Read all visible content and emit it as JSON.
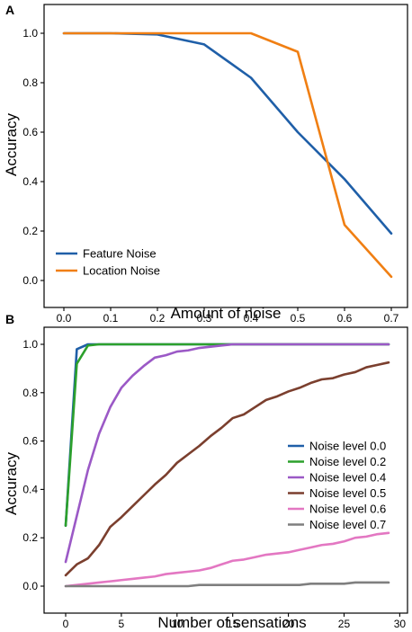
{
  "chart_data": [
    {
      "panel_label": "A",
      "type": "line",
      "xlabel": "Amount of noise",
      "ylabel": "Accuracy",
      "xlim": [
        0.0,
        0.7
      ],
      "ylim": [
        0.0,
        1.0
      ],
      "x_ticks": [
        "0.0",
        "0.1",
        "0.2",
        "0.3",
        "0.4",
        "0.5",
        "0.6",
        "0.7"
      ],
      "y_ticks": [
        "0.0",
        "0.2",
        "0.4",
        "0.6",
        "0.8",
        "1.0"
      ],
      "legend_position": "bottom-left",
      "grid": false,
      "x": [
        0.0,
        0.1,
        0.2,
        0.3,
        0.4,
        0.5,
        0.6,
        0.7
      ],
      "series": [
        {
          "name": "Feature Noise",
          "color": "#1f5fa8",
          "values": [
            1.0,
            1.0,
            0.995,
            0.955,
            0.82,
            0.6,
            0.41,
            0.19
          ]
        },
        {
          "name": "Location Noise",
          "color": "#f07f13",
          "values": [
            1.0,
            1.0,
            1.0,
            1.0,
            1.0,
            0.925,
            0.225,
            0.015
          ]
        }
      ]
    },
    {
      "panel_label": "B",
      "type": "line",
      "xlabel": "Number of sensations",
      "ylabel": "Accuracy",
      "xlim": [
        0,
        29
      ],
      "ylim": [
        0.0,
        1.0
      ],
      "x_ticks": [
        "0",
        "5",
        "10",
        "15",
        "20",
        "25",
        "30"
      ],
      "y_ticks": [
        "0.0",
        "0.2",
        "0.4",
        "0.6",
        "0.8",
        "1.0"
      ],
      "legend_position": "right",
      "grid": false,
      "x": [
        0,
        1,
        2,
        3,
        4,
        5,
        6,
        7,
        8,
        9,
        10,
        11,
        12,
        13,
        14,
        15,
        16,
        17,
        18,
        19,
        20,
        21,
        22,
        23,
        24,
        25,
        26,
        27,
        28,
        29
      ],
      "series": [
        {
          "name": "Noise level 0.0",
          "color": "#1f5fa8",
          "values": [
            0.25,
            0.98,
            1.0,
            1.0,
            1.0,
            1.0,
            1.0,
            1.0,
            1.0,
            1.0,
            1.0,
            1.0,
            1.0,
            1.0,
            1.0,
            1.0,
            1.0,
            1.0,
            1.0,
            1.0,
            1.0,
            1.0,
            1.0,
            1.0,
            1.0,
            1.0,
            1.0,
            1.0,
            1.0,
            1.0
          ]
        },
        {
          "name": "Noise level 0.2",
          "color": "#2ca02c",
          "values": [
            0.25,
            0.92,
            0.995,
            1.0,
            1.0,
            1.0,
            1.0,
            1.0,
            1.0,
            1.0,
            1.0,
            1.0,
            1.0,
            1.0,
            1.0,
            1.0,
            1.0,
            1.0,
            1.0,
            1.0,
            1.0,
            1.0,
            1.0,
            1.0,
            1.0,
            1.0,
            1.0,
            1.0,
            1.0,
            1.0
          ]
        },
        {
          "name": "Noise level 0.4",
          "color": "#9b59c6",
          "values": [
            0.1,
            0.29,
            0.48,
            0.63,
            0.74,
            0.82,
            0.87,
            0.91,
            0.945,
            0.955,
            0.97,
            0.975,
            0.985,
            0.99,
            0.995,
            1.0,
            1.0,
            1.0,
            1.0,
            1.0,
            1.0,
            1.0,
            1.0,
            1.0,
            1.0,
            1.0,
            1.0,
            1.0,
            1.0,
            1.0
          ]
        },
        {
          "name": "Noise level 0.5",
          "color": "#7b3f2e",
          "values": [
            0.045,
            0.09,
            0.115,
            0.17,
            0.245,
            0.285,
            0.33,
            0.375,
            0.42,
            0.46,
            0.51,
            0.545,
            0.58,
            0.62,
            0.655,
            0.695,
            0.71,
            0.74,
            0.77,
            0.785,
            0.805,
            0.82,
            0.84,
            0.855,
            0.86,
            0.875,
            0.885,
            0.905,
            0.915,
            0.925
          ]
        },
        {
          "name": "Noise level 0.6",
          "color": "#e377c2",
          "values": [
            0.0,
            0.005,
            0.01,
            0.015,
            0.02,
            0.025,
            0.03,
            0.035,
            0.04,
            0.05,
            0.055,
            0.06,
            0.065,
            0.075,
            0.09,
            0.105,
            0.11,
            0.12,
            0.13,
            0.135,
            0.14,
            0.15,
            0.16,
            0.17,
            0.175,
            0.185,
            0.2,
            0.205,
            0.215,
            0.22
          ]
        },
        {
          "name": "Noise level 0.7",
          "color": "#7f7f7f",
          "values": [
            0.0,
            0.0,
            0.0,
            0.0,
            0.0,
            0.0,
            0.0,
            0.0,
            0.0,
            0.0,
            0.0,
            0.0,
            0.005,
            0.005,
            0.005,
            0.005,
            0.005,
            0.005,
            0.005,
            0.005,
            0.005,
            0.005,
            0.01,
            0.01,
            0.01,
            0.01,
            0.015,
            0.015,
            0.015,
            0.015
          ]
        }
      ]
    }
  ]
}
